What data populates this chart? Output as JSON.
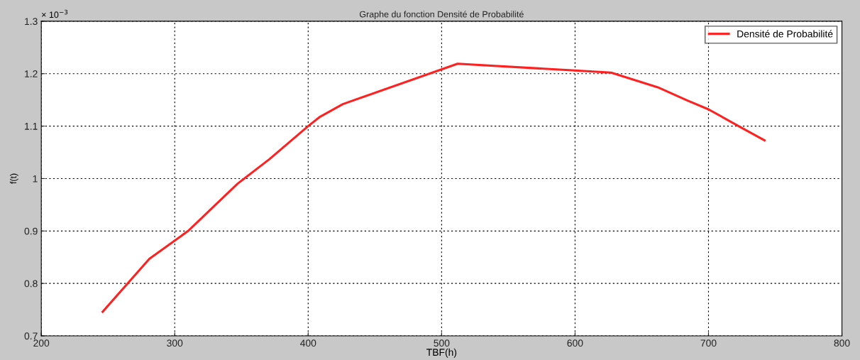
{
  "chart_data": {
    "type": "line",
    "title": "Graphe du fonction Densité de Probabilité",
    "xlabel": "TBF(h)",
    "ylabel": "f(t)",
    "annotations": [
      "× 10$^{−3}$"
    ],
    "series": [
      {
        "name": "Densité de Probabilité",
        "color": "#ff2020",
        "x": [
          246,
          281,
          310,
          347,
          371,
          400,
          409,
          426,
          512,
          600,
          627,
          662,
          684,
          700,
          724,
          742
        ],
        "values": [
          0.746,
          0.847,
          0.9,
          0.99,
          1.037,
          1.1,
          1.118,
          1.142,
          1.219,
          1.206,
          1.202,
          1.174,
          1.149,
          1.132,
          1.098,
          1.073
        ]
      }
    ],
    "xlim": [
      200,
      800
    ],
    "xticks": [
      200,
      300,
      400,
      500,
      600,
      700,
      800
    ],
    "ylim": [
      0.7,
      1.3
    ],
    "yticks": [
      0.7,
      0.8,
      0.9,
      1,
      1.1,
      1.2,
      1.3
    ],
    "grid": true,
    "legend": "top right",
    "marker": "none",
    "line_style": "solid"
  }
}
